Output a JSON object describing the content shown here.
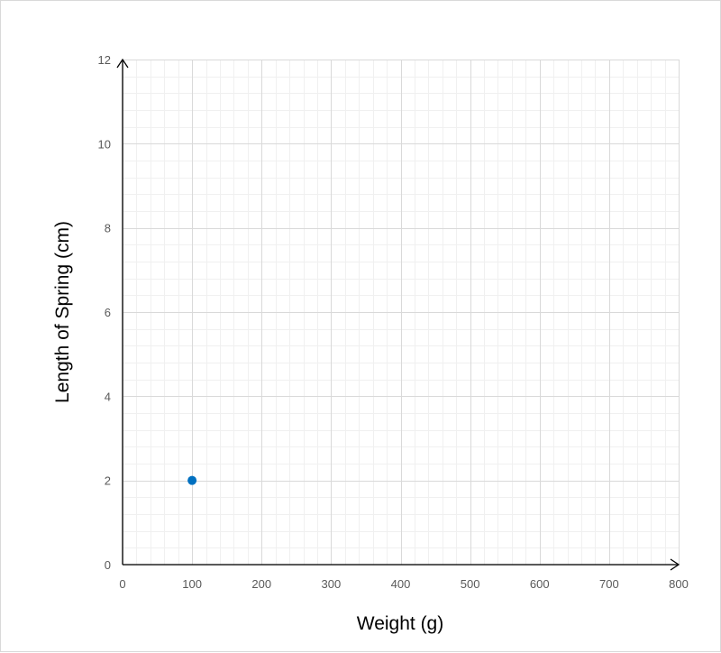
{
  "chart_data": {
    "type": "scatter",
    "title": "",
    "xlabel": "Weight (g)",
    "ylabel": "Length of Spring (cm)",
    "xlim": [
      0,
      800
    ],
    "ylim": [
      0,
      12
    ],
    "x_ticks": [
      0,
      100,
      200,
      300,
      400,
      500,
      600,
      700,
      800
    ],
    "y_ticks": [
      0,
      2,
      4,
      6,
      8,
      10,
      12
    ],
    "x_tick_labels": [
      "0",
      "100",
      "200",
      "300",
      "400",
      "500",
      "600",
      "700",
      "800"
    ],
    "y_tick_labels": [
      "0",
      "2",
      "4",
      "6",
      "8",
      "10",
      "12"
    ],
    "x_minor_step": 20,
    "y_minor_step": 0.4,
    "grid": true,
    "legend": "none",
    "series": [
      {
        "points": [
          {
            "x": 100,
            "y": 2
          }
        ]
      }
    ],
    "colors": {
      "point": "#0070c0",
      "major_grid": "#d9d9d9",
      "minor_grid": "#f0f0f0",
      "axis": "#000000",
      "tick_label": "#595959"
    }
  }
}
